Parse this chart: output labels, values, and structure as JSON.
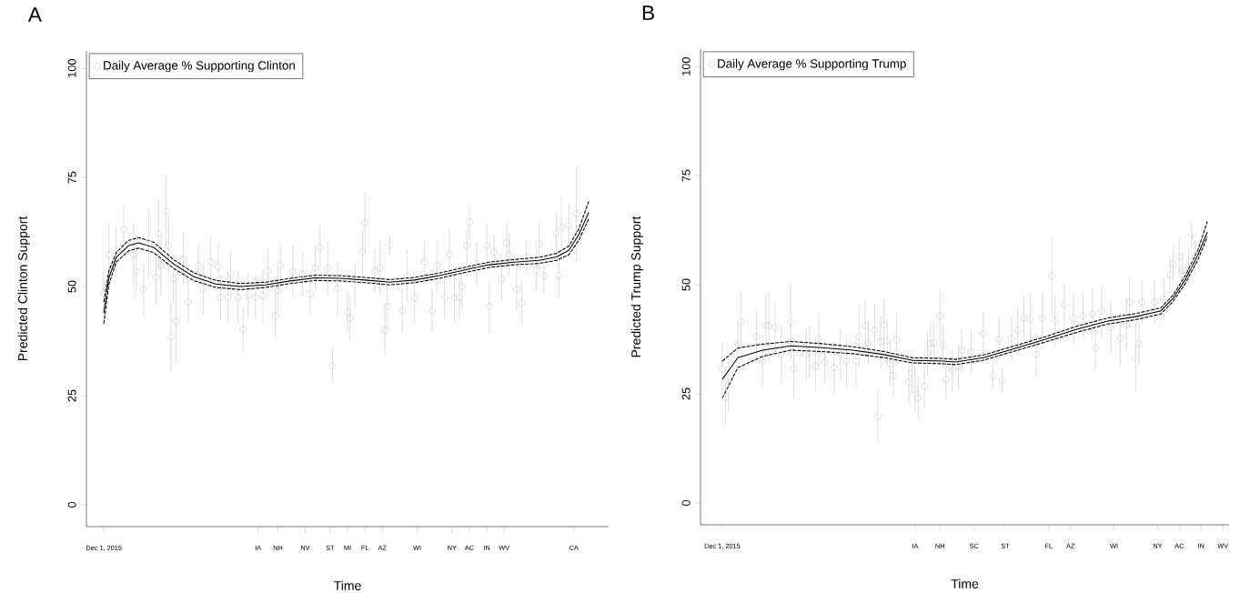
{
  "chart_data": [
    {
      "type": "scatter",
      "title": "A",
      "xlabel": "Time",
      "ylabel": "Predicted Clinton Support",
      "ylim": [
        -5,
        104
      ],
      "yticks": [
        0,
        25,
        50,
        75,
        100
      ],
      "legend": "top left",
      "categories": [
        "Dec 1, 2015",
        null,
        null,
        null,
        null,
        null,
        null,
        null,
        null,
        null,
        null,
        null,
        null,
        null,
        null,
        null,
        null,
        null,
        null,
        null,
        null,
        null,
        null,
        null,
        null,
        null,
        null,
        null,
        null,
        null,
        null,
        null,
        null,
        null,
        null,
        null,
        null,
        null,
        null,
        null,
        null,
        null,
        null,
        null,
        null,
        null,
        null,
        null,
        null,
        null,
        null,
        null,
        null,
        null,
        null,
        null,
        null,
        null,
        null,
        null,
        null,
        null,
        "IA",
        null,
        null,
        null,
        null,
        null,
        null,
        null,
        "NH",
        null,
        null,
        null,
        null,
        null,
        null,
        null,
        null,
        null,
        null,
        "NV",
        null,
        null,
        null,
        null,
        null,
        null,
        null,
        null,
        null,
        "ST",
        null,
        null,
        null,
        null,
        null,
        null,
        "MI",
        null,
        null,
        null,
        null,
        null,
        null,
        "FL",
        null,
        null,
        null,
        null,
        null,
        null,
        "AZ",
        null,
        null,
        null,
        null,
        null,
        null,
        null,
        null,
        null,
        null,
        null,
        null,
        null,
        "WI",
        null,
        null,
        null,
        null,
        null,
        null,
        null,
        null,
        null,
        null,
        null,
        null,
        null,
        "NY",
        null,
        null,
        null,
        null,
        null,
        null,
        "AC",
        null,
        null,
        null,
        null,
        null,
        null,
        "IN",
        null,
        null,
        null,
        null,
        null,
        null,
        "WV",
        null,
        null,
        null,
        null,
        null,
        null,
        null,
        null,
        null,
        null,
        null,
        null,
        null,
        null,
        null,
        null,
        null,
        null,
        null,
        null,
        null,
        null,
        null,
        null,
        null,
        null,
        null,
        "CA",
        null,
        null,
        null,
        null,
        null,
        null
      ],
      "series": [
        {
          "name": "Daily Average % Supporting Clinton",
          "marker": "circle",
          "color": "#cccccc",
          "values": [
            48.3,
            null,
            57.3,
            null,
            null,
            57.9,
            null,
            null,
            63.1,
            null,
            null,
            null,
            57.3,
            53.5,
            null,
            null,
            49.4,
            null,
            59.8,
            null,
            null,
            52.1,
            62.1,
            54.8,
            null,
            67.3,
            59.4,
            38.5,
            51.7,
            42.1,
            null,
            null,
            56.3,
            null,
            46.5,
            null,
            null,
            null,
            54.8,
            null,
            49.6,
            null,
            null,
            55.6,
            null,
            null,
            54.6,
            47.5,
            null,
            null,
            47.5,
            53.1,
            null,
            null,
            47.5,
            null,
            40.2,
            null,
            47.9,
            null,
            null,
            47.5,
            null,
            null,
            47.9,
            null,
            53.5,
            null,
            null,
            43.3,
            49,
            54.8,
            null,
            null,
            null,
            null,
            53.5,
            null,
            null,
            null,
            52.7,
            null,
            null,
            48.3,
            null,
            54.2,
            null,
            59,
            null,
            null,
            54.2,
            null,
            31.9,
            null,
            49.6,
            null,
            null,
            null,
            44.2,
            42.7,
            null,
            50.4,
            null,
            null,
            57.9,
            64.6,
            null,
            null,
            null,
            53.5,
            null,
            54.2,
            null,
            40,
            45.4,
            59.6,
            null,
            null,
            null,
            null,
            44.4,
            null,
            52.5,
            null,
            null,
            47.5,
            null,
            null,
            null,
            55.6,
            null,
            null,
            44.4,
            null,
            54.8,
            null,
            null,
            47.5,
            null,
            57.3,
            null,
            47.5,
            null,
            47.5,
            50,
            null,
            59.4,
            64.8,
            null,
            null,
            55.2,
            null,
            null,
            null,
            59.4,
            45.4,
            null,
            57.9,
            null,
            null,
            51.7,
            null,
            60,
            57.3,
            null,
            null,
            49.4,
            null,
            46.3,
            null,
            56.9,
            null,
            null,
            null,
            53.8,
            59.8,
            null,
            52.5,
            null,
            null,
            null,
            null,
            62.1,
            52.5,
            63.5,
            null,
            null,
            64,
            null,
            null,
            66.7,
            null,
            null,
            null,
            null,
            null
          ],
          "errors": [
            6,
            null,
            7,
            null,
            null,
            6,
            null,
            null,
            6,
            null,
            null,
            null,
            7,
            6,
            null,
            null,
            6,
            null,
            8,
            null,
            null,
            6,
            8,
            7,
            null,
            8,
            7,
            8,
            6,
            10,
            null,
            null,
            6,
            null,
            5,
            null,
            null,
            null,
            5,
            null,
            6,
            null,
            null,
            6,
            null,
            null,
            5,
            5,
            null,
            null,
            6,
            5,
            null,
            null,
            6,
            null,
            5,
            null,
            5,
            null,
            null,
            5,
            null,
            null,
            6,
            null,
            5,
            null,
            null,
            5,
            5,
            5,
            null,
            null,
            null,
            null,
            6,
            null,
            null,
            null,
            5,
            null,
            null,
            5,
            null,
            5,
            null,
            5,
            null,
            null,
            6,
            null,
            4,
            null,
            6,
            null,
            null,
            null,
            5,
            5,
            null,
            5,
            null,
            null,
            5,
            7,
            null,
            null,
            null,
            5,
            null,
            6,
            null,
            6,
            5,
            2,
            null,
            null,
            null,
            null,
            5,
            null,
            6,
            null,
            null,
            6,
            null,
            null,
            null,
            5,
            null,
            null,
            5,
            null,
            6,
            null,
            null,
            5,
            null,
            6,
            null,
            6,
            null,
            5,
            5,
            null,
            4,
            4,
            null,
            null,
            5,
            null,
            null,
            null,
            5,
            6,
            null,
            4,
            null,
            null,
            5,
            null,
            5,
            5,
            null,
            null,
            5,
            null,
            5,
            null,
            4,
            null,
            null,
            null,
            5,
            5,
            null,
            4,
            null,
            null,
            null,
            null,
            5,
            5,
            7,
            null,
            null,
            5,
            null,
            null,
            11,
            null,
            null,
            null,
            null,
            null
          ]
        },
        {
          "type": "line",
          "line_style": "solid",
          "color": "#000000",
          "values": [
            44,
            null,
            52,
            null,
            null,
            56.7,
            null,
            null,
            null,
            null,
            59.4,
            null,
            null,
            null,
            60,
            null,
            null,
            null,
            null,
            null,
            59,
            null,
            null,
            null,
            null,
            null,
            null,
            null,
            55.2,
            null,
            null,
            null,
            null,
            null,
            null,
            null,
            52.3,
            null,
            null,
            null,
            null,
            null,
            null,
            null,
            null,
            50.6,
            null,
            null,
            null,
            null,
            null,
            null,
            null,
            null,
            null,
            50,
            null,
            null,
            null,
            null,
            null,
            null,
            null,
            null,
            null,
            50.4,
            null,
            null,
            null,
            null,
            null,
            null,
            null,
            null,
            null,
            51.3,
            null,
            null,
            null,
            null,
            null,
            null,
            null,
            null,
            null,
            52,
            null,
            null,
            null,
            null,
            null,
            null,
            null,
            null,
            null,
            51.9,
            null,
            null,
            null,
            null,
            null,
            null,
            null,
            null,
            null,
            51.5,
            null,
            null,
            null,
            null,
            null,
            null,
            null,
            null,
            null,
            51,
            null,
            null,
            null,
            null,
            null,
            null,
            null,
            null,
            null,
            51.5,
            null,
            null,
            null,
            null,
            null,
            null,
            null,
            null,
            null,
            52.5,
            null,
            null,
            null,
            null,
            null,
            null,
            null,
            null,
            null,
            53.8,
            null,
            null,
            null,
            null,
            null,
            null,
            null,
            null,
            null,
            55,
            null,
            null,
            null,
            null,
            null,
            null,
            null,
            null,
            null,
            55.6,
            null,
            null,
            null,
            null,
            null,
            null,
            null,
            null,
            null,
            56,
            null,
            null,
            null,
            null,
            null,
            null,
            56.8,
            null,
            null,
            null,
            null,
            58.3,
            null,
            null,
            null,
            61.9,
            null,
            null,
            null,
            67
          ]
        },
        {
          "type": "line",
          "line_style": "dashed",
          "color": "#000000",
          "values": [
            41.5,
            null,
            50.5,
            null,
            null,
            55.6,
            null,
            null,
            null,
            null,
            58.2,
            null,
            null,
            null,
            58.8,
            null,
            null,
            null,
            null,
            null,
            57.8,
            null,
            null,
            null,
            null,
            null,
            null,
            null,
            54.2,
            null,
            null,
            null,
            null,
            null,
            null,
            null,
            51.4,
            null,
            null,
            null,
            null,
            null,
            null,
            null,
            null,
            49.8,
            null,
            null,
            null,
            null,
            null,
            null,
            null,
            null,
            null,
            49.3,
            null,
            null,
            null,
            null,
            null,
            null,
            null,
            null,
            null,
            49.8,
            null,
            null,
            null,
            null,
            null,
            null,
            null,
            null,
            null,
            50.7,
            null,
            null,
            null,
            null,
            null,
            null,
            null,
            null,
            null,
            51.4,
            null,
            null,
            null,
            null,
            null,
            null,
            null,
            null,
            null,
            51.3,
            null,
            null,
            null,
            null,
            null,
            null,
            null,
            null,
            null,
            50.9,
            null,
            null,
            null,
            null,
            null,
            null,
            null,
            null,
            null,
            50.4,
            null,
            null,
            null,
            null,
            null,
            null,
            null,
            null,
            null,
            50.9,
            null,
            null,
            null,
            null,
            null,
            null,
            null,
            null,
            null,
            51.9,
            null,
            null,
            null,
            null,
            null,
            null,
            null,
            null,
            null,
            53.2,
            null,
            null,
            null,
            null,
            null,
            null,
            null,
            null,
            null,
            54.4,
            null,
            null,
            null,
            null,
            null,
            null,
            null,
            null,
            null,
            55,
            null,
            null,
            null,
            null,
            null,
            null,
            null,
            null,
            null,
            55.3,
            null,
            null,
            null,
            null,
            null,
            null,
            56,
            null,
            null,
            null,
            null,
            57.3,
            null,
            null,
            null,
            60.6,
            null,
            null,
            null,
            65.5
          ]
        },
        {
          "type": "line",
          "line_style": "dashed",
          "color": "#000000",
          "values": [
            46.5,
            null,
            53.5,
            null,
            null,
            57.8,
            null,
            null,
            null,
            null,
            60.6,
            null,
            null,
            null,
            61.2,
            null,
            null,
            null,
            null,
            null,
            60.2,
            null,
            null,
            null,
            null,
            null,
            null,
            null,
            56.2,
            null,
            null,
            null,
            null,
            null,
            null,
            null,
            53.2,
            null,
            null,
            null,
            null,
            null,
            null,
            null,
            null,
            51.4,
            null,
            null,
            null,
            null,
            null,
            null,
            null,
            null,
            null,
            50.7,
            null,
            null,
            null,
            null,
            null,
            null,
            null,
            null,
            null,
            51,
            null,
            null,
            null,
            null,
            null,
            null,
            null,
            null,
            null,
            51.9,
            null,
            null,
            null,
            null,
            null,
            null,
            null,
            null,
            null,
            52.6,
            null,
            null,
            null,
            null,
            null,
            null,
            null,
            null,
            null,
            52.5,
            null,
            null,
            null,
            null,
            null,
            null,
            null,
            null,
            null,
            52.1,
            null,
            null,
            null,
            null,
            null,
            null,
            null,
            null,
            null,
            51.6,
            null,
            null,
            null,
            null,
            null,
            null,
            null,
            null,
            null,
            52.1,
            null,
            null,
            null,
            null,
            null,
            null,
            null,
            null,
            null,
            53.1,
            null,
            null,
            null,
            null,
            null,
            null,
            null,
            null,
            null,
            54.4,
            null,
            null,
            null,
            null,
            null,
            null,
            null,
            null,
            null,
            55.6,
            null,
            null,
            null,
            null,
            null,
            null,
            null,
            null,
            null,
            56.2,
            null,
            null,
            null,
            null,
            null,
            null,
            null,
            null,
            null,
            56.7,
            null,
            null,
            null,
            null,
            null,
            null,
            57.6,
            null,
            null,
            null,
            null,
            59.3,
            null,
            null,
            null,
            63.2,
            null,
            null,
            null,
            69.5
          ]
        }
      ]
    },
    {
      "type": "scatter",
      "title": "B",
      "xlabel": "Time",
      "ylabel": "Predicted Trump Support",
      "ylim": [
        -5,
        104
      ],
      "yticks": [
        0,
        25,
        50,
        75,
        100
      ],
      "legend": "top left",
      "categories": [
        "Dec 1, 2015",
        null,
        null,
        null,
        null,
        null,
        null,
        null,
        null,
        null,
        null,
        null,
        null,
        null,
        null,
        null,
        null,
        null,
        null,
        null,
        null,
        null,
        null,
        null,
        null,
        null,
        null,
        null,
        null,
        null,
        null,
        null,
        null,
        null,
        null,
        null,
        null,
        null,
        null,
        null,
        null,
        null,
        null,
        null,
        null,
        null,
        null,
        null,
        null,
        null,
        null,
        null,
        null,
        null,
        null,
        null,
        null,
        null,
        null,
        null,
        null,
        null,
        "IA",
        null,
        null,
        null,
        null,
        null,
        null,
        null,
        "NH",
        null,
        null,
        null,
        null,
        null,
        null,
        null,
        null,
        null,
        null,
        "SC",
        null,
        null,
        null,
        null,
        null,
        null,
        null,
        null,
        null,
        "ST",
        null,
        null,
        null,
        null,
        null,
        null,
        null,
        null,
        null,
        null,
        null,
        null,
        null,
        "FL",
        null,
        null,
        null,
        null,
        null,
        null,
        "AZ",
        null,
        null,
        null,
        null,
        null,
        null,
        null,
        null,
        null,
        null,
        null,
        null,
        null,
        "WI",
        null,
        null,
        null,
        null,
        null,
        null,
        null,
        null,
        null,
        null,
        null,
        null,
        null,
        "NY",
        null,
        null,
        null,
        null,
        null,
        null,
        "AC",
        null,
        null,
        null,
        null,
        null,
        null,
        "IN",
        null,
        null,
        null,
        null,
        null,
        null,
        "WV"
      ],
      "series": [
        {
          "name": "Daily Average % Supporting Trump",
          "marker": "circle",
          "color": "#cccccc",
          "values": [
            30.8,
            24.2,
            27.1,
            null,
            null,
            36.5,
            41.5,
            null,
            null,
            null,
            null,
            38.1,
            null,
            32.5,
            40.8,
            40.6,
            null,
            40.2,
            null,
            34,
            null,
            null,
            41.5,
            30.8,
            null,
            null,
            null,
            34,
            34.6,
            null,
            31.3,
            37.5,
            null,
            32.3,
            null,
            null,
            31,
            null,
            34,
            null,
            32.5,
            null,
            null,
            32.5,
            38.1,
            null,
            40.6,
            36.7,
            null,
            39.6,
            19.8,
            36.9,
            40.8,
            37.1,
            31.9,
            29.2,
            37.5,
            null,
            null,
            null,
            27.7,
            29.8,
            26,
            24,
            null,
            26.7,
            34.4,
            36.5,
            36.7,
            null,
            42.9,
            36,
            28.3,
            null,
            30.4,
            null,
            31.3,
            35,
            null,
            null,
            34.6,
            null,
            null,
            null,
            38.8,
            null,
            null,
            29.2,
            null,
            37.5,
            28.1,
            null,
            null,
            37.7,
            null,
            39.6,
            null,
            42.3,
            null,
            42.1,
            null,
            34,
            null,
            42.3,
            null,
            null,
            52.1,
            41.7,
            null,
            null,
            45.4,
            null,
            null,
            42.3,
            null,
            null,
            42.9,
            null,
            null,
            43.3,
            35.4,
            null,
            44,
            null,
            null,
            40.2,
            null,
            null,
            37.7,
            null,
            40.8,
            46,
            null,
            33.3,
            36.5,
            46,
            null,
            null,
            null,
            46,
            null,
            null,
            46.7,
            null,
            52.3,
            54.8,
            null,
            56.5,
            53.3,
            null,
            54.2,
            61.5,
            56.3,
            null,
            null,
            null,
            null,
            null,
            null,
            null,
            null,
            null
          ],
          "errors": [
            6,
            7,
            6,
            null,
            null,
            5,
            7,
            null,
            null,
            null,
            null,
            6,
            null,
            6,
            7,
            8,
            null,
            6,
            null,
            7,
            null,
            null,
            9,
            7,
            null,
            null,
            null,
            6,
            6,
            null,
            6,
            6,
            null,
            5,
            null,
            null,
            6,
            null,
            6,
            null,
            6,
            null,
            null,
            6,
            7,
            null,
            6,
            5,
            null,
            6,
            6,
            6,
            6,
            5,
            5,
            5,
            6,
            null,
            null,
            null,
            5,
            5,
            5,
            5,
            null,
            5,
            5,
            5,
            5,
            null,
            6,
            5,
            5,
            null,
            5,
            null,
            5,
            5,
            null,
            null,
            5,
            null,
            null,
            null,
            5,
            null,
            null,
            3,
            null,
            5,
            3,
            null,
            null,
            5,
            null,
            5,
            null,
            5,
            null,
            6,
            null,
            5,
            null,
            6,
            null,
            null,
            9,
            6,
            null,
            null,
            5,
            null,
            null,
            6,
            null,
            null,
            5,
            null,
            null,
            6,
            5,
            null,
            6,
            null,
            null,
            6,
            null,
            null,
            6,
            null,
            6,
            6,
            null,
            8,
            5,
            5,
            null,
            null,
            null,
            5,
            null,
            null,
            5,
            null,
            4,
            4,
            null,
            4,
            4,
            null,
            4,
            3,
            4,
            null,
            null,
            null,
            null,
            null,
            null,
            null,
            null,
            null
          ]
        },
        {
          "type": "line",
          "line_style": "solid",
          "color": "#000000",
          "values": [
            28.3,
            null,
            null,
            null,
            null,
            33.3,
            null,
            null,
            null,
            null,
            null,
            null,
            null,
            35,
            null,
            null,
            null,
            null,
            null,
            null,
            null,
            null,
            36,
            null,
            null,
            null,
            null,
            null,
            null,
            null,
            null,
            null,
            35.6,
            null,
            null,
            null,
            null,
            null,
            null,
            null,
            null,
            null,
            35,
            null,
            null,
            null,
            null,
            null,
            null,
            null,
            null,
            null,
            34,
            null,
            null,
            null,
            null,
            null,
            null,
            null,
            null,
            32.7,
            null,
            null,
            null,
            null,
            null,
            null,
            null,
            null,
            null,
            32.5,
            null,
            null,
            null,
            32.3,
            null,
            null,
            null,
            null,
            null,
            null,
            null,
            null,
            33.3,
            null,
            null,
            null,
            null,
            null,
            null,
            null,
            null,
            null,
            35.4,
            null,
            null,
            null,
            null,
            null,
            null,
            null,
            null,
            null,
            37.5,
            null,
            null,
            null,
            null,
            null,
            null,
            null,
            null,
            null,
            39.8,
            null,
            null,
            null,
            null,
            null,
            null,
            null,
            null,
            null,
            41.7,
            null,
            null,
            null,
            null,
            null,
            null,
            null,
            null,
            42.7,
            null,
            null,
            null,
            null,
            null,
            null,
            null,
            44,
            null,
            null,
            null,
            46.9,
            null,
            null,
            null,
            51.3,
            null,
            null,
            null,
            56.9,
            null,
            null,
            62.1,
            null,
            null,
            null,
            null,
            null
          ]
        },
        {
          "type": "line",
          "line_style": "dashed",
          "color": "#000000",
          "values": [
            24,
            null,
            null,
            null,
            null,
            31,
            null,
            null,
            null,
            null,
            null,
            null,
            null,
            33.6,
            null,
            null,
            null,
            null,
            null,
            null,
            null,
            null,
            35,
            null,
            null,
            null,
            null,
            null,
            null,
            null,
            null,
            null,
            34.7,
            null,
            null,
            null,
            null,
            null,
            null,
            null,
            null,
            null,
            34.2,
            null,
            null,
            null,
            null,
            null,
            null,
            null,
            null,
            null,
            33.3,
            null,
            null,
            null,
            null,
            null,
            null,
            null,
            null,
            32.1,
            null,
            null,
            null,
            null,
            null,
            null,
            null,
            null,
            null,
            31.9,
            null,
            null,
            null,
            31.7,
            null,
            null,
            null,
            null,
            null,
            null,
            null,
            null,
            32.7,
            null,
            null,
            null,
            null,
            null,
            null,
            null,
            null,
            null,
            34.8,
            null,
            null,
            null,
            null,
            null,
            null,
            null,
            null,
            null,
            36.9,
            null,
            null,
            null,
            null,
            null,
            null,
            null,
            null,
            null,
            39.1,
            null,
            null,
            null,
            null,
            null,
            null,
            null,
            null,
            null,
            41,
            null,
            null,
            null,
            null,
            null,
            null,
            null,
            null,
            42,
            null,
            null,
            null,
            null,
            null,
            null,
            null,
            43.3,
            null,
            null,
            null,
            46.2,
            null,
            null,
            null,
            50.4,
            null,
            null,
            null,
            55.8,
            null,
            null,
            61,
            null,
            null,
            null,
            null,
            null
          ]
        },
        {
          "type": "line",
          "line_style": "dashed",
          "color": "#000000",
          "values": [
            32.5,
            null,
            null,
            null,
            null,
            35.5,
            null,
            null,
            null,
            null,
            null,
            null,
            null,
            36.4,
            null,
            null,
            null,
            null,
            null,
            null,
            null,
            null,
            37,
            null,
            null,
            null,
            null,
            null,
            null,
            null,
            null,
            null,
            36.5,
            null,
            null,
            null,
            null,
            null,
            null,
            null,
            null,
            null,
            35.8,
            null,
            null,
            null,
            null,
            null,
            null,
            null,
            null,
            null,
            34.7,
            null,
            null,
            null,
            null,
            null,
            null,
            null,
            null,
            33.3,
            null,
            null,
            null,
            null,
            null,
            null,
            null,
            null,
            null,
            33.1,
            null,
            null,
            null,
            32.9,
            null,
            null,
            null,
            null,
            null,
            null,
            null,
            null,
            33.9,
            null,
            null,
            null,
            null,
            null,
            null,
            null,
            null,
            null,
            36,
            null,
            null,
            null,
            null,
            null,
            null,
            null,
            null,
            null,
            38.1,
            null,
            null,
            null,
            null,
            null,
            null,
            null,
            null,
            null,
            40.5,
            null,
            null,
            null,
            null,
            null,
            null,
            null,
            null,
            null,
            42.4,
            null,
            null,
            null,
            null,
            null,
            null,
            null,
            null,
            43.4,
            null,
            null,
            null,
            null,
            null,
            null,
            null,
            44.7,
            null,
            null,
            null,
            47.6,
            null,
            null,
            null,
            52.2,
            null,
            null,
            null,
            58,
            null,
            null,
            64.5,
            null,
            null,
            null,
            null,
            null
          ]
        }
      ]
    }
  ]
}
